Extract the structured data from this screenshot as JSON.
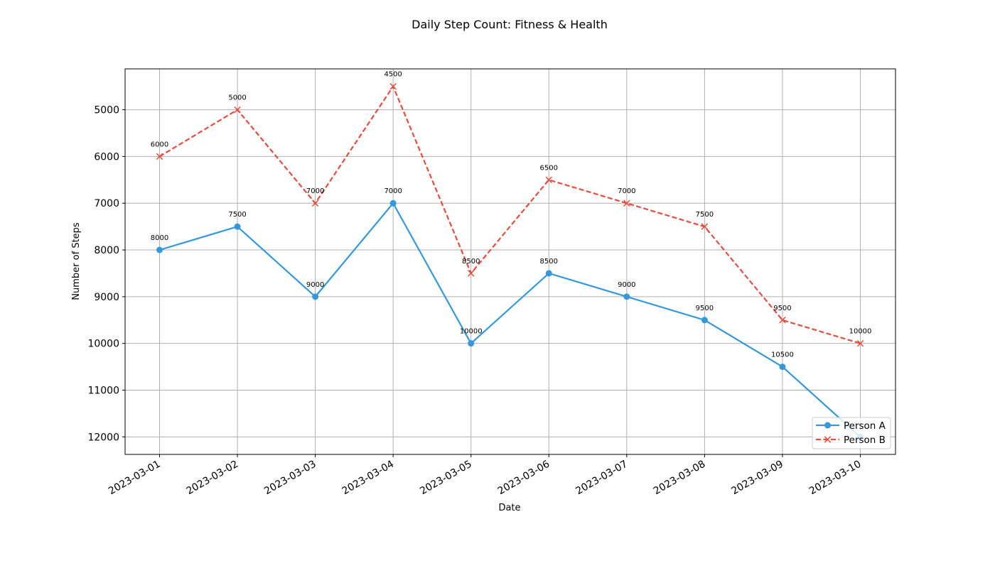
{
  "chart_data": {
    "type": "line",
    "title": "Daily Step Count: Fitness & Health",
    "xlabel": "Date",
    "ylabel": "Number of Steps",
    "x": [
      "2023-03-01",
      "2023-03-02",
      "2023-03-03",
      "2023-03-04",
      "2023-03-05",
      "2023-03-06",
      "2023-03-07",
      "2023-03-08",
      "2023-03-09",
      "2023-03-10"
    ],
    "series": [
      {
        "name": "Person A",
        "values": [
          8000,
          7500,
          9000,
          7000,
          10000,
          8500,
          9000,
          9500,
          10500,
          12000
        ],
        "labels": [
          "8000",
          "7500",
          "9000",
          "7000",
          "10000",
          "8500",
          "9000",
          "9500",
          "10500",
          ""
        ],
        "color": "#3498db",
        "marker": "circle",
        "line_style": "solid"
      },
      {
        "name": "Person B",
        "values": [
          6000,
          5000,
          7000,
          4500,
          8500,
          6500,
          7000,
          7500,
          9500,
          10000
        ],
        "labels": [
          "6000",
          "5000",
          "7000",
          "4500",
          "8500",
          "6500",
          "7000",
          "7500",
          "9500",
          "10000"
        ],
        "color": "#e74c3c",
        "marker": "x",
        "line_style": "dashed"
      }
    ],
    "yticks": [
      5000,
      6000,
      7000,
      8000,
      9000,
      10000,
      11000,
      12000
    ],
    "ylim": [
      12375,
      4125
    ],
    "y_inverted": true,
    "grid": true,
    "legend_position": "lower-right"
  }
}
